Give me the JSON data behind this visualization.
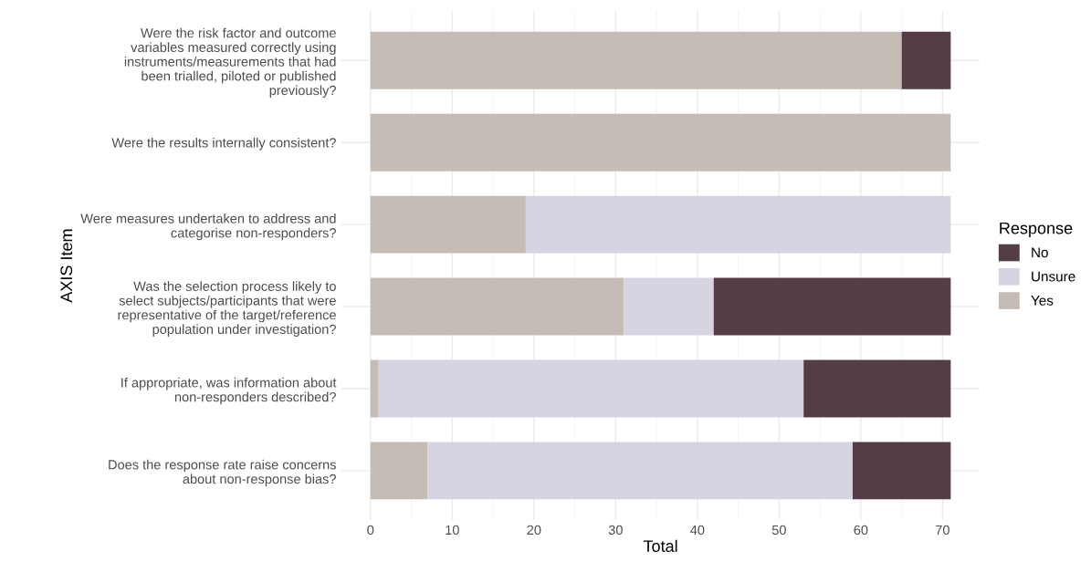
{
  "chart_data": {
    "type": "bar",
    "orientation": "horizontal",
    "stacked": true,
    "categories": [
      "Were the risk factor and outcome\nvariables measured correctly using\ninstruments/measurements that had\nbeen trialled, piloted or published\npreviously?",
      "Were the results internally consistent?",
      "Were measures undertaken to address and\ncategorise non-responders?",
      "Was the selection process likely to\nselect subjects/participants that were\nrepresentative of the target/reference\npopulation under investigation?",
      "If appropriate, was information about\nnon-responders described?",
      "Does the response rate raise concerns\nabout non-response bias?"
    ],
    "series": [
      {
        "name": "Yes",
        "color": "#c5bcb6",
        "values": [
          65,
          71,
          19,
          31,
          1,
          7
        ]
      },
      {
        "name": "Unsure",
        "color": "#d6d4e1",
        "values": [
          0,
          0,
          52,
          11,
          52,
          52
        ]
      },
      {
        "name": "No",
        "color": "#553d47",
        "values": [
          6,
          0,
          0,
          29,
          18,
          12
        ]
      }
    ],
    "xlim": [
      -3.55,
      74.55
    ],
    "xticks": [
      0,
      10,
      20,
      30,
      40,
      50,
      60,
      70
    ],
    "xlabel": "Total",
    "ylabel": "AXIS Item",
    "legend_title": "Response",
    "legend": "right",
    "grid": true
  }
}
